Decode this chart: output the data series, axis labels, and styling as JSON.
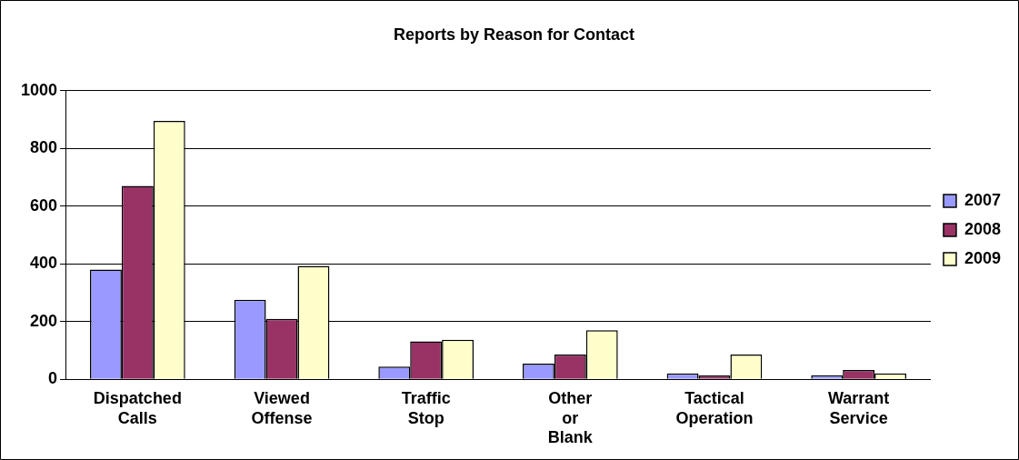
{
  "chart_data": {
    "type": "bar",
    "title": "Reports by Reason for Contact",
    "categories": [
      "Dispatched Calls",
      "Viewed Offense",
      "Traffic Stop",
      "Other or Blank",
      "Tactical Operation",
      "Warrant Service"
    ],
    "series": [
      {
        "name": "2007",
        "color": "#9999ff",
        "values": [
          380,
          275,
          44,
          54,
          20,
          14
        ]
      },
      {
        "name": "2008",
        "color": "#993366",
        "values": [
          670,
          209,
          131,
          86,
          13,
          32
        ]
      },
      {
        "name": "2009",
        "color": "#ffffcc",
        "values": [
          895,
          393,
          137,
          170,
          86,
          20
        ]
      }
    ],
    "ylim": [
      0,
      1000
    ],
    "yticks": [
      0,
      200,
      400,
      600,
      800,
      1000
    ],
    "grid": "y",
    "legend": "right"
  }
}
